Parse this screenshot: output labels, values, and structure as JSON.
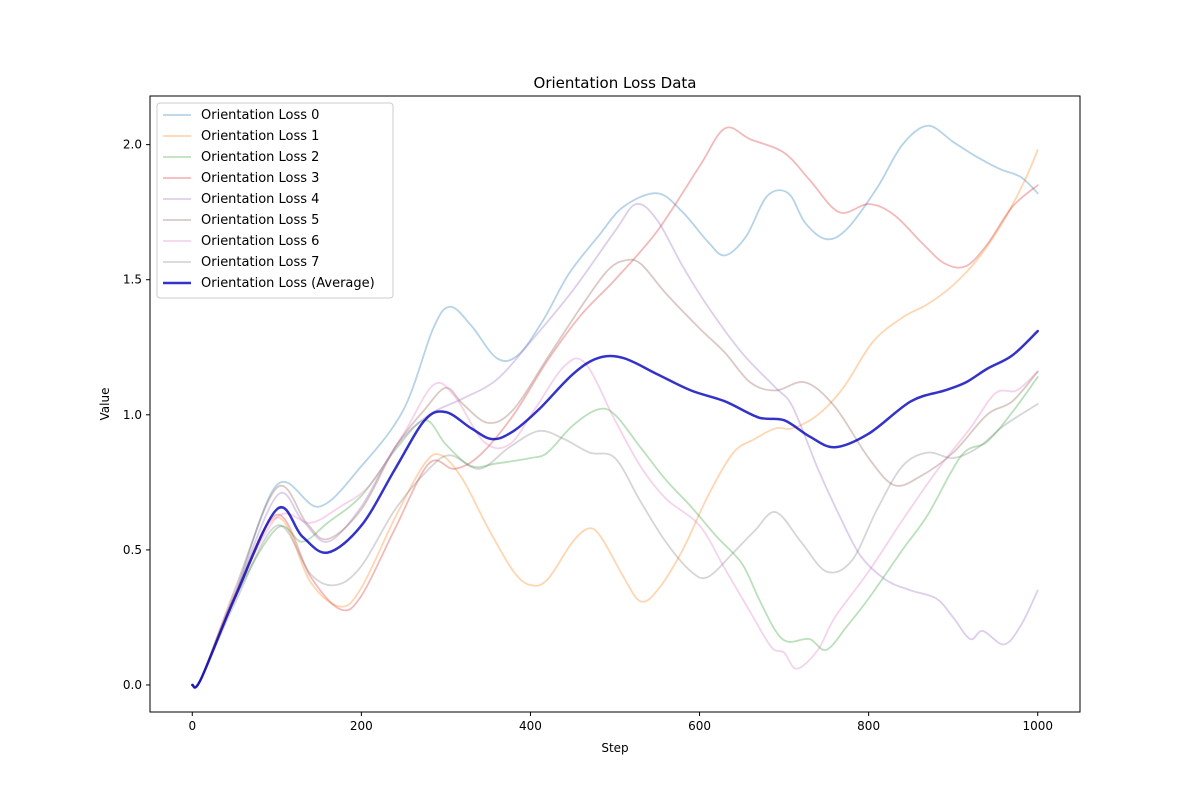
{
  "chart_data": {
    "type": "line",
    "title": "Orientation Loss Data",
    "xlabel": "Step",
    "ylabel": "Value",
    "xlim": [
      -50,
      1050
    ],
    "ylim": [
      -0.1,
      2.18
    ],
    "xticks": [
      0,
      200,
      400,
      600,
      800,
      1000
    ],
    "xtick_labels": [
      "0",
      "200",
      "400",
      "600",
      "800",
      "1000"
    ],
    "yticks": [
      0.0,
      0.5,
      1.0,
      1.5,
      2.0
    ],
    "ytick_labels": [
      "0.0",
      "0.5",
      "1.0",
      "1.5",
      "2.0"
    ],
    "grid": false,
    "legend_position": "upper-left",
    "series": [
      {
        "name": "Orientation Loss 0",
        "color": "#1f77b4",
        "opacity": 0.32,
        "width": 1.8,
        "points": [
          [
            0,
            0
          ],
          [
            10,
            0.02
          ],
          [
            50,
            0.33
          ],
          [
            100,
            0.74
          ],
          [
            150,
            0.66
          ],
          [
            200,
            0.81
          ],
          [
            250,
            1.02
          ],
          [
            285,
            1.32
          ],
          [
            305,
            1.4
          ],
          [
            330,
            1.33
          ],
          [
            360,
            1.21
          ],
          [
            385,
            1.22
          ],
          [
            415,
            1.35
          ],
          [
            445,
            1.52
          ],
          [
            480,
            1.66
          ],
          [
            510,
            1.77
          ],
          [
            550,
            1.82
          ],
          [
            580,
            1.75
          ],
          [
            610,
            1.64
          ],
          [
            630,
            1.59
          ],
          [
            655,
            1.66
          ],
          [
            680,
            1.81
          ],
          [
            705,
            1.82
          ],
          [
            725,
            1.71
          ],
          [
            750,
            1.65
          ],
          [
            775,
            1.69
          ],
          [
            810,
            1.84
          ],
          [
            840,
            2.0
          ],
          [
            870,
            2.07
          ],
          [
            900,
            2.01
          ],
          [
            925,
            1.96
          ],
          [
            955,
            1.91
          ],
          [
            980,
            1.88
          ],
          [
            1000,
            1.82
          ]
        ]
      },
      {
        "name": "Orientation Loss 1",
        "color": "#ff7f0e",
        "opacity": 0.32,
        "width": 1.8,
        "points": [
          [
            0,
            0
          ],
          [
            10,
            0.02
          ],
          [
            50,
            0.33
          ],
          [
            100,
            0.62
          ],
          [
            140,
            0.38
          ],
          [
            175,
            0.29
          ],
          [
            200,
            0.36
          ],
          [
            240,
            0.62
          ],
          [
            275,
            0.82
          ],
          [
            295,
            0.85
          ],
          [
            320,
            0.76
          ],
          [
            350,
            0.58
          ],
          [
            380,
            0.42
          ],
          [
            400,
            0.37
          ],
          [
            420,
            0.39
          ],
          [
            450,
            0.53
          ],
          [
            470,
            0.58
          ],
          [
            485,
            0.54
          ],
          [
            510,
            0.4
          ],
          [
            530,
            0.31
          ],
          [
            550,
            0.35
          ],
          [
            580,
            0.5
          ],
          [
            610,
            0.7
          ],
          [
            640,
            0.86
          ],
          [
            665,
            0.91
          ],
          [
            690,
            0.95
          ],
          [
            710,
            0.95
          ],
          [
            740,
            1.0
          ],
          [
            770,
            1.1
          ],
          [
            805,
            1.27
          ],
          [
            840,
            1.36
          ],
          [
            870,
            1.41
          ],
          [
            900,
            1.48
          ],
          [
            930,
            1.58
          ],
          [
            960,
            1.72
          ],
          [
            985,
            1.87
          ],
          [
            1000,
            1.98
          ]
        ]
      },
      {
        "name": "Orientation Loss 2",
        "color": "#2ca02c",
        "opacity": 0.32,
        "width": 1.8,
        "points": [
          [
            0,
            0
          ],
          [
            10,
            0.02
          ],
          [
            50,
            0.32
          ],
          [
            100,
            0.58
          ],
          [
            130,
            0.53
          ],
          [
            160,
            0.6
          ],
          [
            200,
            0.7
          ],
          [
            240,
            0.87
          ],
          [
            275,
            0.98
          ],
          [
            300,
            0.89
          ],
          [
            330,
            0.81
          ],
          [
            360,
            0.82
          ],
          [
            400,
            0.84
          ],
          [
            420,
            0.86
          ],
          [
            450,
            0.96
          ],
          [
            480,
            1.02
          ],
          [
            500,
            1.0
          ],
          [
            530,
            0.88
          ],
          [
            560,
            0.76
          ],
          [
            590,
            0.66
          ],
          [
            620,
            0.55
          ],
          [
            650,
            0.45
          ],
          [
            670,
            0.32
          ],
          [
            690,
            0.2
          ],
          [
            705,
            0.16
          ],
          [
            730,
            0.17
          ],
          [
            750,
            0.13
          ],
          [
            775,
            0.22
          ],
          [
            800,
            0.32
          ],
          [
            840,
            0.5
          ],
          [
            870,
            0.63
          ],
          [
            910,
            0.85
          ],
          [
            940,
            0.9
          ],
          [
            970,
            1.01
          ],
          [
            1000,
            1.14
          ]
        ]
      },
      {
        "name": "Orientation Loss 3",
        "color": "#d62728",
        "opacity": 0.32,
        "width": 1.8,
        "points": [
          [
            0,
            0
          ],
          [
            10,
            0.02
          ],
          [
            50,
            0.33
          ],
          [
            100,
            0.63
          ],
          [
            140,
            0.4
          ],
          [
            175,
            0.28
          ],
          [
            200,
            0.33
          ],
          [
            240,
            0.58
          ],
          [
            280,
            0.82
          ],
          [
            310,
            0.8
          ],
          [
            340,
            0.85
          ],
          [
            380,
            1.0
          ],
          [
            420,
            1.2
          ],
          [
            460,
            1.37
          ],
          [
            500,
            1.5
          ],
          [
            550,
            1.68
          ],
          [
            600,
            1.92
          ],
          [
            630,
            2.06
          ],
          [
            660,
            2.02
          ],
          [
            700,
            1.97
          ],
          [
            730,
            1.87
          ],
          [
            765,
            1.75
          ],
          [
            800,
            1.78
          ],
          [
            830,
            1.74
          ],
          [
            865,
            1.63
          ],
          [
            890,
            1.56
          ],
          [
            915,
            1.55
          ],
          [
            940,
            1.63
          ],
          [
            970,
            1.77
          ],
          [
            1000,
            1.85
          ]
        ]
      },
      {
        "name": "Orientation Loss 4",
        "color": "#9467bd",
        "opacity": 0.32,
        "width": 1.8,
        "points": [
          [
            0,
            0
          ],
          [
            10,
            0.02
          ],
          [
            50,
            0.33
          ],
          [
            100,
            0.7
          ],
          [
            130,
            0.61
          ],
          [
            160,
            0.53
          ],
          [
            200,
            0.66
          ],
          [
            240,
            0.88
          ],
          [
            280,
            1.0
          ],
          [
            320,
            1.06
          ],
          [
            360,
            1.13
          ],
          [
            400,
            1.27
          ],
          [
            450,
            1.46
          ],
          [
            500,
            1.68
          ],
          [
            525,
            1.78
          ],
          [
            550,
            1.72
          ],
          [
            580,
            1.55
          ],
          [
            610,
            1.4
          ],
          [
            650,
            1.23
          ],
          [
            690,
            1.1
          ],
          [
            710,
            1.03
          ],
          [
            740,
            0.8
          ],
          [
            765,
            0.63
          ],
          [
            790,
            0.48
          ],
          [
            820,
            0.39
          ],
          [
            850,
            0.35
          ],
          [
            880,
            0.32
          ],
          [
            900,
            0.25
          ],
          [
            920,
            0.17
          ],
          [
            935,
            0.2
          ],
          [
            960,
            0.15
          ],
          [
            980,
            0.22
          ],
          [
            1000,
            0.35
          ]
        ]
      },
      {
        "name": "Orientation Loss 5",
        "color": "#8c564b",
        "opacity": 0.32,
        "width": 1.8,
        "points": [
          [
            0,
            0
          ],
          [
            10,
            0.02
          ],
          [
            50,
            0.35
          ],
          [
            100,
            0.73
          ],
          [
            135,
            0.6
          ],
          [
            160,
            0.54
          ],
          [
            200,
            0.65
          ],
          [
            240,
            0.88
          ],
          [
            275,
            1.02
          ],
          [
            300,
            1.1
          ],
          [
            320,
            1.04
          ],
          [
            350,
            0.97
          ],
          [
            380,
            1.02
          ],
          [
            420,
            1.21
          ],
          [
            460,
            1.4
          ],
          [
            490,
            1.53
          ],
          [
            510,
            1.57
          ],
          [
            530,
            1.56
          ],
          [
            560,
            1.45
          ],
          [
            600,
            1.32
          ],
          [
            630,
            1.23
          ],
          [
            660,
            1.12
          ],
          [
            690,
            1.09
          ],
          [
            725,
            1.12
          ],
          [
            760,
            1.03
          ],
          [
            800,
            0.84
          ],
          [
            830,
            0.74
          ],
          [
            860,
            0.77
          ],
          [
            900,
            0.86
          ],
          [
            940,
            1.0
          ],
          [
            970,
            1.05
          ],
          [
            1000,
            1.16
          ]
        ]
      },
      {
        "name": "Orientation Loss 6",
        "color": "#e377c2",
        "opacity": 0.32,
        "width": 1.8,
        "points": [
          [
            0,
            0
          ],
          [
            10,
            0.02
          ],
          [
            50,
            0.33
          ],
          [
            100,
            0.62
          ],
          [
            140,
            0.6
          ],
          [
            175,
            0.66
          ],
          [
            210,
            0.74
          ],
          [
            250,
            0.93
          ],
          [
            285,
            1.11
          ],
          [
            310,
            1.07
          ],
          [
            345,
            0.9
          ],
          [
            375,
            0.89
          ],
          [
            405,
            1.02
          ],
          [
            440,
            1.18
          ],
          [
            465,
            1.19
          ],
          [
            500,
            0.98
          ],
          [
            530,
            0.81
          ],
          [
            560,
            0.69
          ],
          [
            600,
            0.59
          ],
          [
            630,
            0.43
          ],
          [
            660,
            0.27
          ],
          [
            685,
            0.14
          ],
          [
            700,
            0.12
          ],
          [
            715,
            0.06
          ],
          [
            740,
            0.13
          ],
          [
            760,
            0.25
          ],
          [
            800,
            0.42
          ],
          [
            840,
            0.61
          ],
          [
            880,
            0.79
          ],
          [
            920,
            0.95
          ],
          [
            950,
            1.08
          ],
          [
            975,
            1.09
          ],
          [
            1000,
            1.16
          ]
        ]
      },
      {
        "name": "Orientation Loss 7",
        "color": "#7f7f7f",
        "opacity": 0.32,
        "width": 1.8,
        "points": [
          [
            0,
            0
          ],
          [
            10,
            0.02
          ],
          [
            50,
            0.3
          ],
          [
            100,
            0.59
          ],
          [
            140,
            0.41
          ],
          [
            170,
            0.37
          ],
          [
            200,
            0.44
          ],
          [
            240,
            0.65
          ],
          [
            280,
            0.8
          ],
          [
            305,
            0.85
          ],
          [
            340,
            0.8
          ],
          [
            375,
            0.88
          ],
          [
            410,
            0.94
          ],
          [
            440,
            0.91
          ],
          [
            470,
            0.86
          ],
          [
            500,
            0.84
          ],
          [
            530,
            0.68
          ],
          [
            560,
            0.53
          ],
          [
            590,
            0.42
          ],
          [
            610,
            0.4
          ],
          [
            640,
            0.49
          ],
          [
            665,
            0.57
          ],
          [
            690,
            0.64
          ],
          [
            720,
            0.53
          ],
          [
            750,
            0.42
          ],
          [
            780,
            0.46
          ],
          [
            810,
            0.65
          ],
          [
            840,
            0.81
          ],
          [
            870,
            0.86
          ],
          [
            900,
            0.84
          ],
          [
            930,
            0.88
          ],
          [
            960,
            0.96
          ],
          [
            1000,
            1.04
          ]
        ]
      },
      {
        "name": "Orientation Loss (Average)",
        "color": "#0000bb",
        "opacity": 0.8,
        "width": 2.5,
        "points": [
          [
            0,
            0
          ],
          [
            10,
            0.02
          ],
          [
            50,
            0.32
          ],
          [
            100,
            0.65
          ],
          [
            130,
            0.55
          ],
          [
            160,
            0.49
          ],
          [
            200,
            0.59
          ],
          [
            240,
            0.8
          ],
          [
            275,
            0.98
          ],
          [
            300,
            1.01
          ],
          [
            330,
            0.95
          ],
          [
            355,
            0.91
          ],
          [
            380,
            0.94
          ],
          [
            410,
            1.02
          ],
          [
            450,
            1.15
          ],
          [
            480,
            1.21
          ],
          [
            510,
            1.21
          ],
          [
            550,
            1.15
          ],
          [
            590,
            1.09
          ],
          [
            630,
            1.05
          ],
          [
            670,
            0.99
          ],
          [
            700,
            0.98
          ],
          [
            730,
            0.92
          ],
          [
            760,
            0.88
          ],
          [
            800,
            0.93
          ],
          [
            850,
            1.05
          ],
          [
            890,
            1.09
          ],
          [
            915,
            1.12
          ],
          [
            940,
            1.17
          ],
          [
            970,
            1.22
          ],
          [
            1000,
            1.31
          ]
        ]
      }
    ]
  }
}
